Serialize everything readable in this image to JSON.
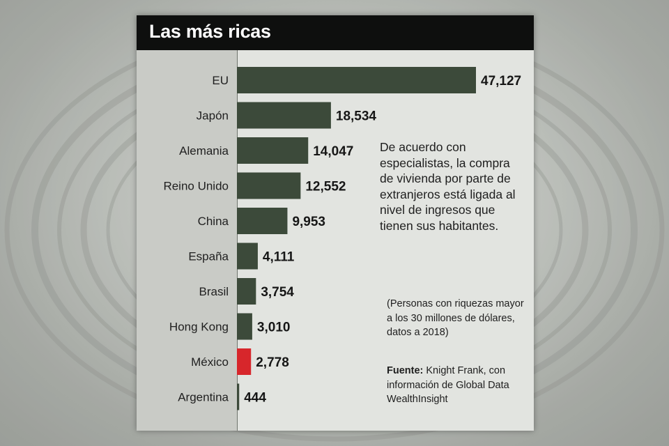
{
  "title": "Las más ricas",
  "colors": {
    "bar": "#3c4a3a",
    "highlight_bar": "#d7262b",
    "title_background": "#0e0f0e",
    "panel": "#e2e4e0"
  },
  "chart_data": {
    "type": "bar",
    "orientation": "horizontal",
    "title": "Las más ricas",
    "categories": [
      "EU",
      "Japón",
      "Alemania",
      "Reino Unido",
      "China",
      "España",
      "Brasil",
      "Hong Kong",
      "México",
      "Argentina"
    ],
    "values": [
      47127,
      18534,
      14047,
      12552,
      9953,
      4111,
      3754,
      3010,
      2778,
      444
    ],
    "value_labels": [
      "47,127",
      "18,534",
      "14,047",
      "12,552",
      "9,953",
      "4,111",
      "3,754",
      "3,010",
      "2,778",
      "444"
    ],
    "highlight_category": "México",
    "xlim": [
      0,
      47127
    ],
    "grid": false,
    "legend": "none"
  },
  "note": "De acuerdo con especialistas, la compra de vivienda por parte de extranjeros está ligada al nivel de ingresos que tienen sus habitantes.",
  "subnote": "(Personas con riquezas mayor a los 30 millones de dólares, datos a 2018)",
  "source": {
    "label": "Fuente:",
    "text": " Knight Frank, con información de Global Data WealthInsight"
  }
}
